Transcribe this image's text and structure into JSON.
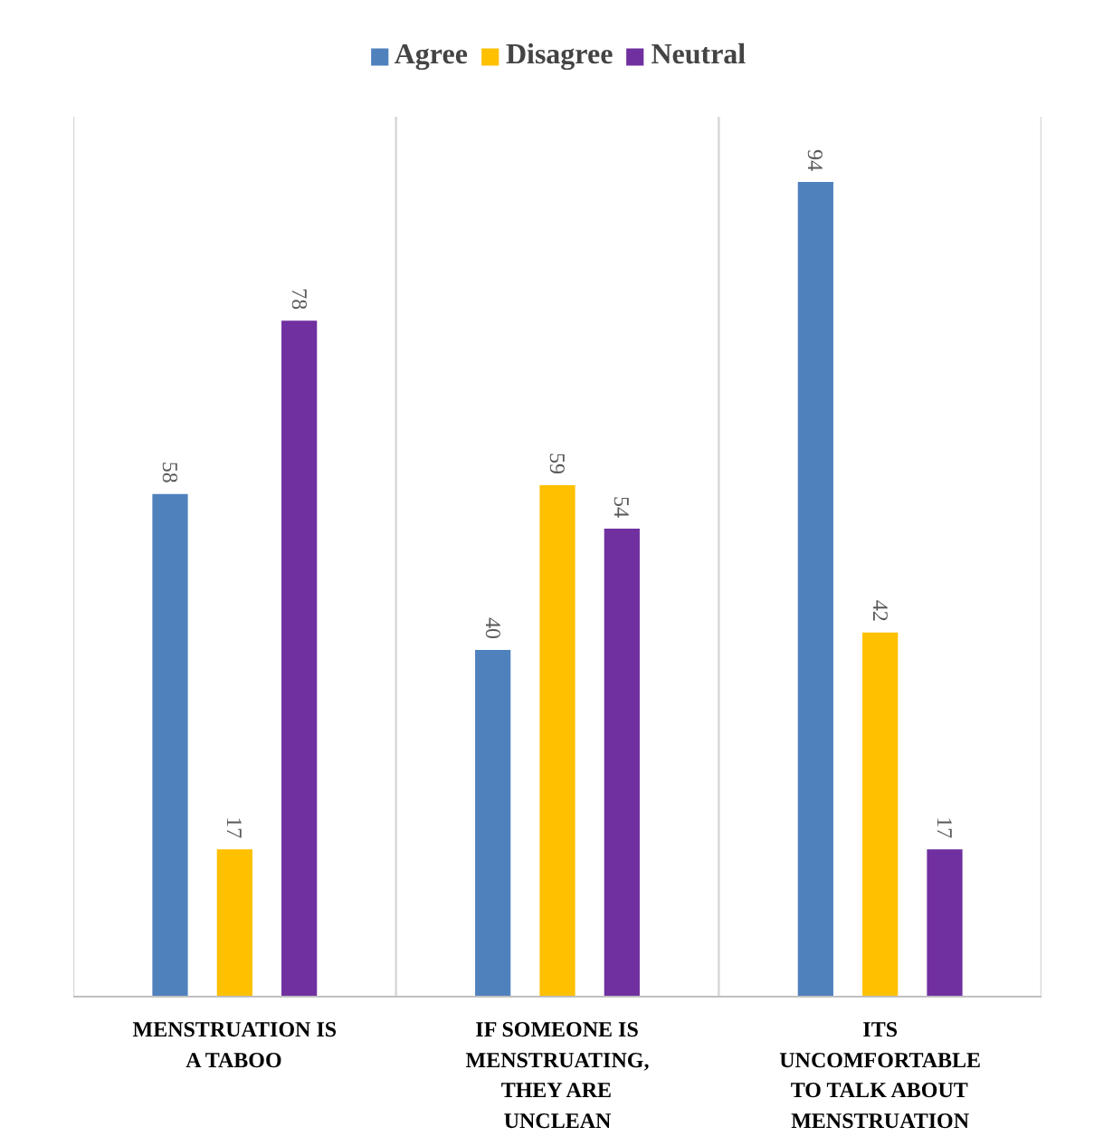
{
  "chart_data": {
    "type": "bar",
    "categories": [
      "MENSTRUATION IS A TABOO",
      "IF SOMEONE IS MENSTRUATING, THEY ARE UNCLEAN",
      "ITS UNCOMFORTABLE TO TALK ABOUT MENSTRUATION"
    ],
    "series": [
      {
        "name": "Agree",
        "color": "#4f81bd",
        "values": [
          58,
          40,
          94
        ]
      },
      {
        "name": "Disagree",
        "color": "#ffc000",
        "values": [
          17,
          59,
          42
        ]
      },
      {
        "name": "Neutral",
        "color": "#7030a0",
        "values": [
          78,
          54,
          17
        ]
      }
    ],
    "data_labels": true,
    "grid": "x",
    "legend": "top"
  }
}
